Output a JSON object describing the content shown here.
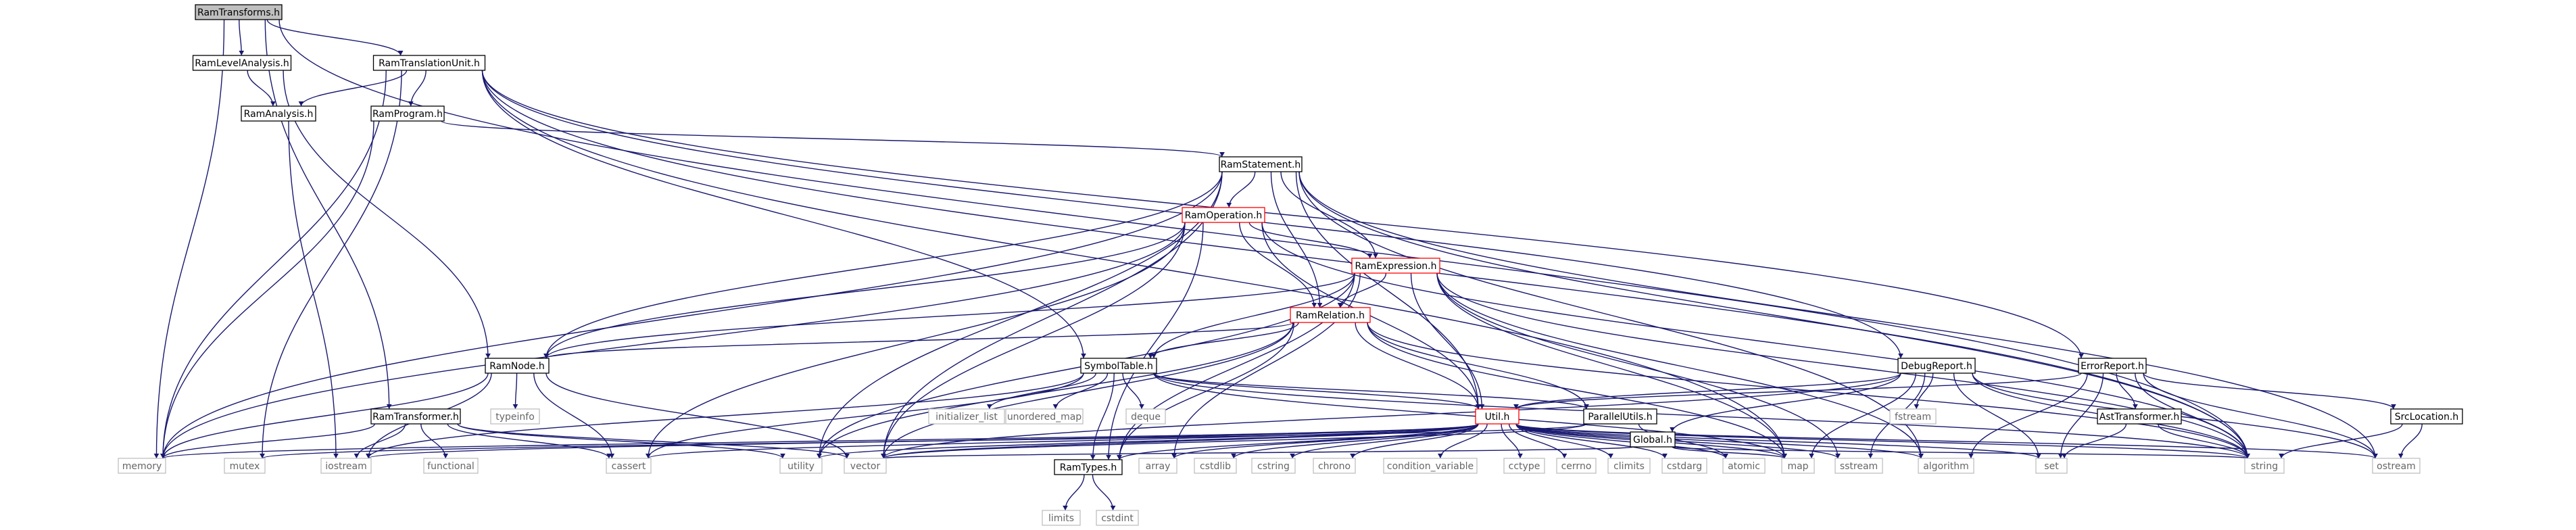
{
  "graph": {
    "title": "RamTransforms.h",
    "nodes": [
      {
        "id": "RamTransforms",
        "label": "RamTransforms.h",
        "style": "root"
      },
      {
        "id": "RamLevelAnalysis",
        "label": "RamLevelAnalysis.h",
        "style": "linked"
      },
      {
        "id": "RamTranslationUnit",
        "label": "RamTranslationUnit.h",
        "style": "linked"
      },
      {
        "id": "RamAnalysis",
        "label": "RamAnalysis.h",
        "style": "linked"
      },
      {
        "id": "RamProgram",
        "label": "RamProgram.h",
        "style": "linked"
      },
      {
        "id": "RamStatement",
        "label": "RamStatement.h",
        "style": "linked"
      },
      {
        "id": "RamOperation",
        "label": "RamOperation.h",
        "style": "highlight"
      },
      {
        "id": "RamExpression",
        "label": "RamExpression.h",
        "style": "highlight"
      },
      {
        "id": "RamRelation",
        "label": "RamRelation.h",
        "style": "highlight"
      },
      {
        "id": "RamNode",
        "label": "RamNode.h",
        "style": "linked"
      },
      {
        "id": "SymbolTable",
        "label": "SymbolTable.h",
        "style": "linked"
      },
      {
        "id": "DebugReport",
        "label": "DebugReport.h",
        "style": "linked"
      },
      {
        "id": "ErrorReport",
        "label": "ErrorReport.h",
        "style": "linked"
      },
      {
        "id": "RamTransformer",
        "label": "RamTransformer.h",
        "style": "linked"
      },
      {
        "id": "Util",
        "label": "Util.h",
        "style": "highlight"
      },
      {
        "id": "ParallelUtils",
        "label": "ParallelUtils.h",
        "style": "linked"
      },
      {
        "id": "Global",
        "label": "Global.h",
        "style": "linked"
      },
      {
        "id": "AstTransformer",
        "label": "AstTransformer.h",
        "style": "linked"
      },
      {
        "id": "SrcLocation",
        "label": "SrcLocation.h",
        "style": "linked"
      },
      {
        "id": "RamTypes",
        "label": "RamTypes.h",
        "style": "linked"
      },
      {
        "id": "memory",
        "label": "memory",
        "style": "system"
      },
      {
        "id": "mutex",
        "label": "mutex",
        "style": "system"
      },
      {
        "id": "iostream",
        "label": "iostream",
        "style": "system"
      },
      {
        "id": "functional",
        "label": "functional",
        "style": "system"
      },
      {
        "id": "cassert",
        "label": "cassert",
        "style": "system"
      },
      {
        "id": "utility",
        "label": "utility",
        "style": "system"
      },
      {
        "id": "vector",
        "label": "vector",
        "style": "system"
      },
      {
        "id": "typeinfo",
        "label": "typeinfo",
        "style": "system"
      },
      {
        "id": "initializer_list",
        "label": "initializer_list",
        "style": "system"
      },
      {
        "id": "unordered_map",
        "label": "unordered_map",
        "style": "system"
      },
      {
        "id": "deque",
        "label": "deque",
        "style": "system"
      },
      {
        "id": "array",
        "label": "array",
        "style": "system"
      },
      {
        "id": "cstdlib",
        "label": "cstdlib",
        "style": "system"
      },
      {
        "id": "cstring",
        "label": "cstring",
        "style": "system"
      },
      {
        "id": "chrono",
        "label": "chrono",
        "style": "system"
      },
      {
        "id": "condition_variable",
        "label": "condition_variable",
        "style": "system"
      },
      {
        "id": "cctype",
        "label": "cctype",
        "style": "system"
      },
      {
        "id": "cerrno",
        "label": "cerrno",
        "style": "system"
      },
      {
        "id": "climits",
        "label": "climits",
        "style": "system"
      },
      {
        "id": "cstdarg",
        "label": "cstdarg",
        "style": "system"
      },
      {
        "id": "atomic",
        "label": "atomic",
        "style": "system"
      },
      {
        "id": "map",
        "label": "map",
        "style": "system"
      },
      {
        "id": "sstream",
        "label": "sstream",
        "style": "system"
      },
      {
        "id": "algorithm",
        "label": "algorithm",
        "style": "system"
      },
      {
        "id": "fstream",
        "label": "fstream",
        "style": "system"
      },
      {
        "id": "set",
        "label": "set",
        "style": "system"
      },
      {
        "id": "string",
        "label": "string",
        "style": "system"
      },
      {
        "id": "ostream",
        "label": "ostream",
        "style": "system"
      },
      {
        "id": "limits",
        "label": "limits",
        "style": "system"
      },
      {
        "id": "cstdint",
        "label": "cstdint",
        "style": "system"
      }
    ],
    "edges": [
      [
        "RamTransforms",
        "RamLevelAnalysis"
      ],
      [
        "RamTransforms",
        "RamTranslationUnit"
      ],
      [
        "RamTransforms",
        "memory"
      ],
      [
        "RamTransforms",
        "RamTransformer"
      ],
      [
        "RamTransforms",
        "string"
      ],
      [
        "RamLevelAnalysis",
        "RamAnalysis"
      ],
      [
        "RamLevelAnalysis",
        "RamNode"
      ],
      [
        "RamTranslationUnit",
        "RamAnalysis"
      ],
      [
        "RamTranslationUnit",
        "RamProgram"
      ],
      [
        "RamTranslationUnit",
        "SymbolTable"
      ],
      [
        "RamTranslationUnit",
        "DebugReport"
      ],
      [
        "RamTranslationUnit",
        "ErrorReport"
      ],
      [
        "RamTranslationUnit",
        "memory"
      ],
      [
        "RamTranslationUnit",
        "mutex"
      ],
      [
        "RamTranslationUnit",
        "map"
      ],
      [
        "RamTranslationUnit",
        "string"
      ],
      [
        "RamAnalysis",
        "iostream"
      ],
      [
        "RamProgram",
        "RamStatement"
      ],
      [
        "RamProgram",
        "memory"
      ],
      [
        "RamStatement",
        "RamOperation"
      ],
      [
        "RamStatement",
        "RamExpression"
      ],
      [
        "RamStatement",
        "RamRelation"
      ],
      [
        "RamStatement",
        "RamNode"
      ],
      [
        "RamStatement",
        "Util"
      ],
      [
        "RamStatement",
        "memory"
      ],
      [
        "RamStatement",
        "vector"
      ],
      [
        "RamStatement",
        "utility"
      ],
      [
        "RamStatement",
        "algorithm"
      ],
      [
        "RamStatement",
        "ostream"
      ],
      [
        "RamStatement",
        "string"
      ],
      [
        "RamOperation",
        "RamExpression"
      ],
      [
        "RamOperation",
        "RamRelation"
      ],
      [
        "RamOperation",
        "RamNode"
      ],
      [
        "RamOperation",
        "RamTypes"
      ],
      [
        "RamOperation",
        "Util"
      ],
      [
        "RamOperation",
        "cassert"
      ],
      [
        "RamOperation",
        "vector"
      ],
      [
        "RamOperation",
        "memory"
      ],
      [
        "RamOperation",
        "string"
      ],
      [
        "RamExpression",
        "RamRelation"
      ],
      [
        "RamExpression",
        "RamNode"
      ],
      [
        "RamExpression",
        "SymbolTable"
      ],
      [
        "RamExpression",
        "Util"
      ],
      [
        "RamExpression",
        "array"
      ],
      [
        "RamExpression",
        "utility"
      ],
      [
        "RamExpression",
        "algorithm"
      ],
      [
        "RamExpression",
        "sstream"
      ],
      [
        "RamExpression",
        "string"
      ],
      [
        "RamExpression",
        "RamTypes"
      ],
      [
        "RamExpression",
        "map"
      ],
      [
        "RamRelation",
        "RamNode"
      ],
      [
        "RamRelation",
        "SymbolTable"
      ],
      [
        "RamRelation",
        "Util"
      ],
      [
        "RamRelation",
        "ParallelUtils"
      ],
      [
        "RamRelation",
        "RamTypes"
      ],
      [
        "RamRelation",
        "utility"
      ],
      [
        "RamRelation",
        "vector"
      ],
      [
        "RamRelation",
        "map"
      ],
      [
        "RamRelation",
        "string"
      ],
      [
        "RamNode",
        "typeinfo"
      ],
      [
        "RamNode",
        "cassert"
      ],
      [
        "RamNode",
        "memory"
      ],
      [
        "RamNode",
        "vector"
      ],
      [
        "RamNode",
        "iostream"
      ],
      [
        "SymbolTable",
        "ParallelUtils"
      ],
      [
        "SymbolTable",
        "RamTypes"
      ],
      [
        "SymbolTable",
        "Util"
      ],
      [
        "SymbolTable",
        "initializer_list"
      ],
      [
        "SymbolTable",
        "unordered_map"
      ],
      [
        "SymbolTable",
        "deque"
      ],
      [
        "SymbolTable",
        "map"
      ],
      [
        "SymbolTable",
        "iostream"
      ],
      [
        "SymbolTable",
        "cassert"
      ],
      [
        "SymbolTable",
        "string"
      ],
      [
        "DebugReport",
        "Global"
      ],
      [
        "DebugReport",
        "Util"
      ],
      [
        "DebugReport",
        "fstream"
      ],
      [
        "DebugReport",
        "sstream"
      ],
      [
        "DebugReport",
        "set"
      ],
      [
        "DebugReport",
        "string"
      ],
      [
        "DebugReport",
        "ostream"
      ],
      [
        "DebugReport",
        "vector"
      ],
      [
        "DebugReport",
        "map"
      ],
      [
        "ErrorReport",
        "SrcLocation"
      ],
      [
        "ErrorReport",
        "AstTransformer"
      ],
      [
        "ErrorReport",
        "Util"
      ],
      [
        "ErrorReport",
        "algorithm"
      ],
      [
        "ErrorReport",
        "set"
      ],
      [
        "ErrorReport",
        "string"
      ],
      [
        "ErrorReport",
        "ostream"
      ],
      [
        "RamTransformer",
        "memory"
      ],
      [
        "RamTransformer",
        "iostream"
      ],
      [
        "RamTransformer",
        "functional"
      ],
      [
        "RamTransformer",
        "cassert"
      ],
      [
        "RamTransformer",
        "utility"
      ],
      [
        "RamTransformer",
        "vector"
      ],
      [
        "Util",
        "RamTypes"
      ],
      [
        "Util",
        "cassert"
      ],
      [
        "Util",
        "utility"
      ],
      [
        "Util",
        "vector"
      ],
      [
        "Util",
        "array"
      ],
      [
        "Util",
        "cstdlib"
      ],
      [
        "Util",
        "cstring"
      ],
      [
        "Util",
        "chrono"
      ],
      [
        "Util",
        "condition_variable"
      ],
      [
        "Util",
        "cctype"
      ],
      [
        "Util",
        "cerrno"
      ],
      [
        "Util",
        "climits"
      ],
      [
        "Util",
        "cstdarg"
      ],
      [
        "Util",
        "atomic"
      ],
      [
        "Util",
        "map"
      ],
      [
        "Util",
        "sstream"
      ],
      [
        "Util",
        "algorithm"
      ],
      [
        "Util",
        "set"
      ],
      [
        "Util",
        "string"
      ],
      [
        "Util",
        "ostream"
      ],
      [
        "Util",
        "memory"
      ],
      [
        "Util",
        "iostream"
      ],
      [
        "ParallelUtils",
        "atomic"
      ],
      [
        "ParallelUtils",
        "mutex"
      ],
      [
        "ParallelUtils",
        "vector"
      ],
      [
        "Global",
        "map"
      ],
      [
        "Global",
        "string"
      ],
      [
        "Global",
        "vector"
      ],
      [
        "AstTransformer",
        "set"
      ],
      [
        "AstTransformer",
        "string"
      ],
      [
        "SrcLocation",
        "string"
      ],
      [
        "SrcLocation",
        "ostream"
      ],
      [
        "RamTypes",
        "limits"
      ],
      [
        "RamTypes",
        "cstdint"
      ]
    ]
  },
  "colors": {
    "edge": "#191970",
    "node_border_default": "#000000",
    "node_border_highlight": "#ff0000",
    "node_border_system": "#bfbfbf",
    "root_fill": "#bfbfbf",
    "node_fill": "#ffffff",
    "text": "#000000",
    "system_text": "#666666"
  }
}
